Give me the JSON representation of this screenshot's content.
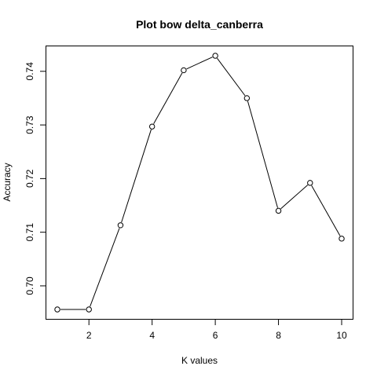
{
  "chart_data": {
    "type": "line",
    "title": "Plot bow delta_canberra",
    "xlabel": "K values",
    "ylabel": "Accuracy",
    "x": [
      1,
      2,
      3,
      4,
      5,
      6,
      7,
      8,
      9,
      10
    ],
    "y": [
      0.6956,
      0.6956,
      0.7113,
      0.7297,
      0.7402,
      0.7429,
      0.735,
      0.714,
      0.7192,
      0.7088
    ],
    "xlim": [
      1,
      10
    ],
    "ylim": [
      0.6956,
      0.7429
    ],
    "xticks": [
      2,
      4,
      6,
      8,
      10
    ],
    "xtick_labels": [
      "2",
      "4",
      "6",
      "8",
      "10"
    ],
    "yticks": [
      0.7,
      0.71,
      0.72,
      0.73,
      0.74
    ],
    "ytick_labels": [
      "0.70",
      "0.71",
      "0.72",
      "0.73",
      "0.74"
    ],
    "marker": "open-circle",
    "line_color": "#000000",
    "grid": false,
    "legend": false
  }
}
